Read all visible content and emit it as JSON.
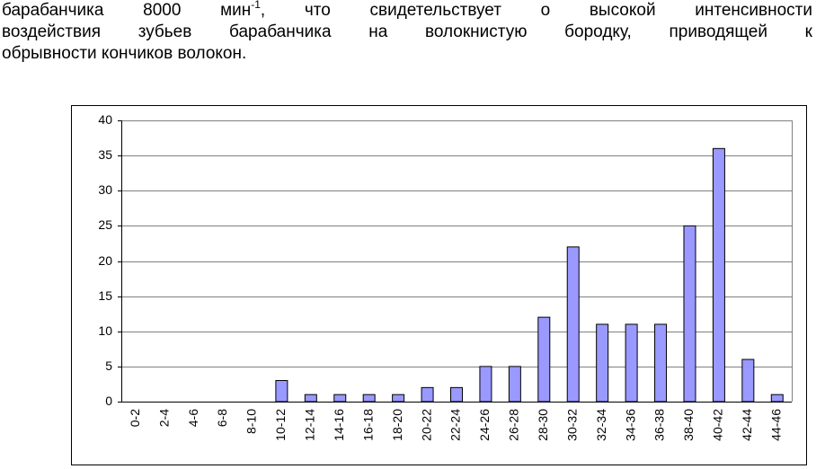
{
  "paragraph": {
    "parts": [
      "барабанчика 8000 мин",
      "-1",
      ", что свидетельствует о высокой интенсивности",
      "воздействия зубьев барабанчика на волокнистую бородку, приводящей к",
      "обрывности кончиков волокон."
    ]
  },
  "chart_data": {
    "type": "bar",
    "categories": [
      "0-2",
      "2-4",
      "4-6",
      "6-8",
      "8-10",
      "10-12",
      "12-14",
      "14-16",
      "16-18",
      "18-20",
      "20-22",
      "22-24",
      "24-26",
      "26-28",
      "28-30",
      "30-32",
      "32-34",
      "34-36",
      "36-38",
      "38-40",
      "40-42",
      "42-44",
      "44-46"
    ],
    "values": [
      0,
      0,
      0,
      0,
      0,
      3,
      1,
      1,
      1,
      1,
      2,
      2,
      5,
      5,
      12,
      22,
      11,
      11,
      11,
      25,
      36,
      6,
      1
    ],
    "color": "#9999ff",
    "ylim": [
      0,
      40
    ],
    "yticks": [
      0,
      5,
      10,
      15,
      20,
      25,
      30,
      35,
      40
    ],
    "grid": true
  }
}
